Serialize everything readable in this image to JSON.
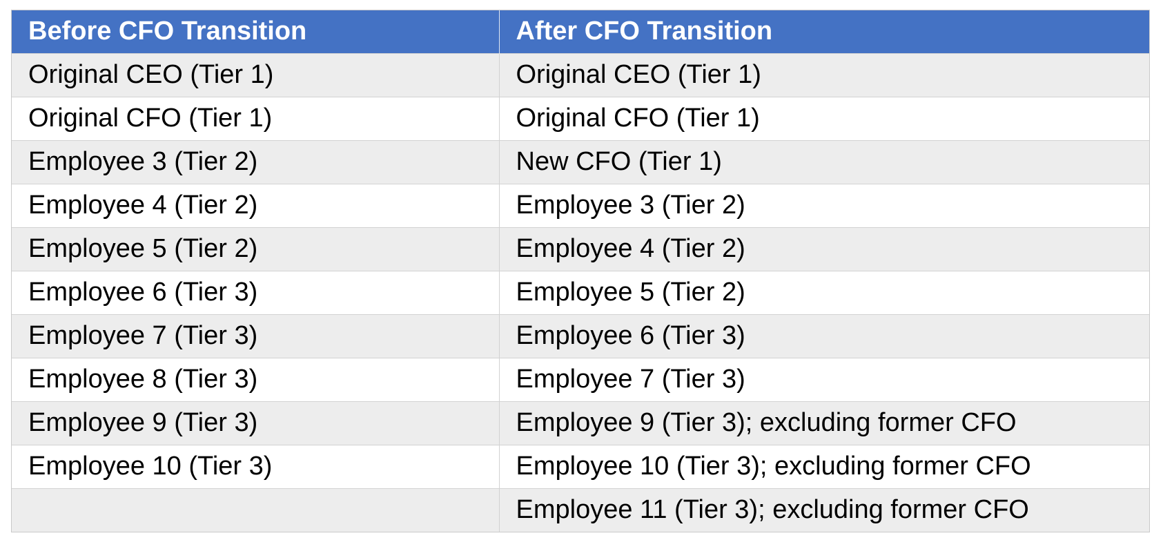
{
  "table": {
    "headers": [
      "Before CFO Transition",
      "After CFO Transition"
    ],
    "rows": [
      [
        "Original CEO (Tier 1)",
        "Original CEO (Tier 1)"
      ],
      [
        "Original CFO (Tier 1)",
        "Original CFO (Tier 1)"
      ],
      [
        "Employee 3 (Tier 2)",
        "New CFO (Tier 1)"
      ],
      [
        "Employee 4 (Tier 2)",
        "Employee 3 (Tier 2)"
      ],
      [
        "Employee 5 (Tier 2)",
        "Employee 4 (Tier 2)"
      ],
      [
        "Employee 6 (Tier 3)",
        "Employee 5 (Tier 2)"
      ],
      [
        "Employee 7 (Tier 3)",
        "Employee 6 (Tier 3)"
      ],
      [
        "Employee 8 (Tier 3)",
        "Employee 7 (Tier 3)"
      ],
      [
        "Employee 9 (Tier 3)",
        "Employee 9 (Tier 3); excluding former CFO"
      ],
      [
        "Employee 10 (Tier 3)",
        "Employee 10 (Tier 3); excluding former CFO"
      ],
      [
        "",
        "Employee 11 (Tier 3); excluding former CFO"
      ]
    ]
  },
  "colors": {
    "header_bg": "#4472c4",
    "header_text": "#ffffff",
    "row_shaded": "#ededed",
    "row_plain": "#ffffff"
  }
}
